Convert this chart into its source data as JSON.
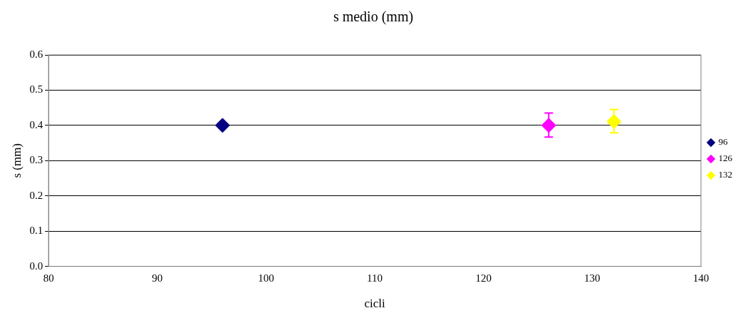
{
  "chart_data": {
    "type": "scatter",
    "title": "s medio (mm)",
    "xlabel": "cicli",
    "ylabel": "s (mm)",
    "series": [
      {
        "name": "96",
        "color": "#000080",
        "x": [
          96
        ],
        "values": [
          0.4
        ]
      },
      {
        "name": "126",
        "color": "#ff00ff",
        "x": [
          126
        ],
        "values": [
          0.4
        ],
        "errors": [
          [
            0.367,
            0.435
          ]
        ]
      },
      {
        "name": "132",
        "color": "#ffff00",
        "x": [
          132
        ],
        "values": [
          0.411
        ],
        "errors": [
          [
            0.379,
            0.445
          ]
        ]
      }
    ],
    "xlim": [
      80,
      140
    ],
    "xticks": [
      80,
      90,
      100,
      110,
      120,
      130,
      140
    ],
    "ylim": [
      0,
      0.6
    ],
    "yticks": [
      {
        "value": 0,
        "label": "0.0"
      },
      {
        "value": 0.1,
        "label": "0.1"
      },
      {
        "value": 0.2,
        "label": "0.2"
      },
      {
        "value": 0.3,
        "label": "0.3"
      },
      {
        "value": 0.4,
        "label": "0.4"
      },
      {
        "value": 0.5,
        "label": "0.5"
      },
      {
        "value": 0.6,
        "label": "0.6"
      }
    ],
    "grid": "y",
    "legend": "right",
    "marker": "diamond"
  }
}
